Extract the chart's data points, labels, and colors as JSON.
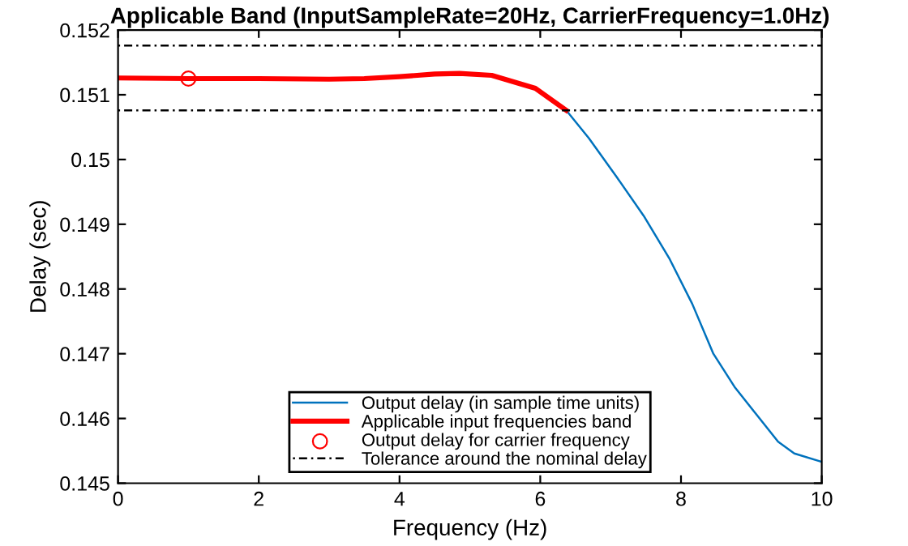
{
  "chart_data": {
    "type": "line",
    "title": "Applicable Band (InputSampleRate=20Hz, CarrierFrequency=1.0Hz)",
    "xlabel": "Frequency (Hz)",
    "ylabel": "Delay (sec)",
    "xlim": [
      0,
      10
    ],
    "xticks": [
      0,
      2,
      4,
      6,
      8,
      10
    ],
    "ylim": [
      0.145,
      0.152
    ],
    "yticks": [
      0.145,
      0.146,
      0.147,
      0.148,
      0.149,
      0.15,
      0.151,
      0.152
    ],
    "grid": false,
    "legend": "bottom",
    "series": [
      {
        "name": "Output delay (in sample time units)",
        "color": "#0072bd",
        "x": [
          6.37,
          6.69,
          7.08,
          7.47,
          7.84,
          8.16,
          8.46,
          8.76,
          9.08,
          9.38,
          9.61,
          10
        ],
        "values": [
          0.15076,
          0.15033,
          0.14974,
          0.14913,
          0.14846,
          0.14777,
          0.147,
          0.14649,
          0.14605,
          0.14564,
          0.14546,
          0.14533
        ]
      },
      {
        "name": "Applicable input frequencies band",
        "color": "#ff0000",
        "x": [
          0,
          1,
          2,
          3,
          3.5,
          4,
          4.5,
          4.85,
          5.31,
          5.93,
          6.37
        ],
        "values": [
          0.15126,
          0.15125,
          0.15125,
          0.15124,
          0.15125,
          0.15128,
          0.15132,
          0.15133,
          0.1513,
          0.1511,
          0.15076
        ]
      },
      {
        "name": "Output delay for carrier frequency",
        "type": "scatter",
        "marker": "circle",
        "color": "#ff0000",
        "x": [
          1
        ],
        "values": [
          0.15125
        ]
      },
      {
        "name": "Tolerance around the nominal delay",
        "line_style": "dashdot",
        "color": "#000000",
        "x": [
          0,
          10
        ],
        "values": [
          0.15176,
          0.15176
        ]
      },
      {
        "line_style": "dashdot",
        "color": "#000000",
        "x": [
          0,
          10
        ],
        "values": [
          0.15076,
          0.15076
        ]
      }
    ]
  }
}
